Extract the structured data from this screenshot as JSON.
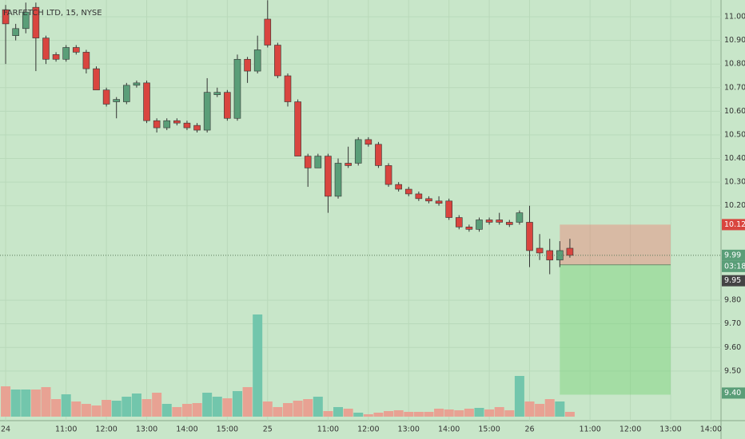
{
  "chart_data": {
    "type": "candlestick",
    "title": "FARFETCH LTD, 15, NYSE",
    "open": [
      11.03,
      10.92,
      10.95,
      11.04,
      10.91,
      10.84,
      10.82,
      10.87,
      10.85,
      10.78,
      10.69,
      10.64,
      10.64,
      10.71,
      10.72,
      10.56,
      10.53,
      10.56,
      10.55,
      10.54,
      10.52,
      10.67,
      10.68,
      10.57,
      10.82,
      10.77,
      10.99,
      10.88,
      10.75,
      10.64,
      10.41,
      10.36,
      10.41,
      10.24,
      10.38,
      10.38,
      10.48,
      10.46,
      10.37,
      10.29,
      10.27,
      10.25,
      10.23,
      10.22,
      10.22,
      10.15,
      10.11,
      10.1,
      10.14,
      10.14,
      10.13,
      10.13,
      10.13,
      10.02,
      10.01,
      9.97,
      10.02
    ],
    "high": [
      11.05,
      10.97,
      11.06,
      11.06,
      10.92,
      10.85,
      10.88,
      10.88,
      10.86,
      10.79,
      10.7,
      10.66,
      10.72,
      10.73,
      10.73,
      10.57,
      10.57,
      10.57,
      10.56,
      10.55,
      10.74,
      10.7,
      10.69,
      10.84,
      10.83,
      10.92,
      11.07,
      10.89,
      10.76,
      10.65,
      10.42,
      10.42,
      10.42,
      10.4,
      10.45,
      10.49,
      10.49,
      10.47,
      10.38,
      10.3,
      10.28,
      10.26,
      10.24,
      10.24,
      10.23,
      10.16,
      10.12,
      10.15,
      10.15,
      10.17,
      10.14,
      10.18,
      10.2,
      10.08,
      10.06,
      10.05,
      10.06
    ],
    "low": [
      10.8,
      10.9,
      10.93,
      10.77,
      10.8,
      10.81,
      10.81,
      10.84,
      10.76,
      10.69,
      10.62,
      10.57,
      10.63,
      10.7,
      10.55,
      10.51,
      10.52,
      10.54,
      10.52,
      10.51,
      10.51,
      10.66,
      10.56,
      10.56,
      10.72,
      10.76,
      10.87,
      10.74,
      10.62,
      10.41,
      10.28,
      10.36,
      10.17,
      10.23,
      10.36,
      10.37,
      10.45,
      10.36,
      10.28,
      10.26,
      10.24,
      10.22,
      10.21,
      10.2,
      10.14,
      10.1,
      10.09,
      10.09,
      10.12,
      10.12,
      10.11,
      10.12,
      9.94,
      9.97,
      9.91,
      9.94,
      9.98
    ],
    "close": [
      10.97,
      10.95,
      11.02,
      10.91,
      10.82,
      10.82,
      10.87,
      10.85,
      10.78,
      10.69,
      10.63,
      10.65,
      10.71,
      10.72,
      10.56,
      10.53,
      10.56,
      10.55,
      10.53,
      10.52,
      10.68,
      10.68,
      10.57,
      10.82,
      10.77,
      10.86,
      10.88,
      10.75,
      10.64,
      10.41,
      10.36,
      10.41,
      10.24,
      10.38,
      10.37,
      10.48,
      10.46,
      10.37,
      10.29,
      10.27,
      10.25,
      10.23,
      10.22,
      10.21,
      10.15,
      10.11,
      10.1,
      10.14,
      10.13,
      10.13,
      10.12,
      10.17,
      10.01,
      10.0,
      9.97,
      10.01,
      9.99
    ],
    "volume": [
      38,
      34,
      34,
      34,
      37,
      22,
      28,
      19,
      16,
      14,
      21,
      20,
      25,
      29,
      22,
      30,
      16,
      12,
      16,
      17,
      30,
      25,
      23,
      32,
      37,
      128,
      19,
      12,
      17,
      20,
      22,
      25,
      7,
      12,
      10,
      5,
      3,
      5,
      7,
      8,
      6,
      6,
      6,
      10,
      9,
      8,
      10,
      11,
      9,
      12,
      8,
      51,
      19,
      16,
      22,
      19,
      6
    ],
    "up_color": "#5a9e78",
    "down_color": "#d9453f",
    "up_volume_color": "#72c6ac",
    "down_volume_color": "#e8a293",
    "xlim": [
      -0.56,
      71
    ],
    "ylim": [
      9.29,
      11.071
    ],
    "vlim": [
      0,
      300
    ],
    "xticks": [
      {
        "value": 0,
        "label": "24"
      },
      {
        "value": 6,
        "label": "11:00"
      },
      {
        "value": 10,
        "label": "12:00"
      },
      {
        "value": 14,
        "label": "13:00"
      },
      {
        "value": 18,
        "label": "14:00"
      },
      {
        "value": 22,
        "label": "15:00"
      },
      {
        "value": 26,
        "label": "25"
      },
      {
        "value": 32,
        "label": "11:00"
      },
      {
        "value": 36,
        "label": "12:00"
      },
      {
        "value": 40,
        "label": "13:00"
      },
      {
        "value": 44,
        "label": "14:00"
      },
      {
        "value": 48,
        "label": "15:00"
      },
      {
        "value": 52,
        "label": "26"
      },
      {
        "value": 58,
        "label": "11:00"
      },
      {
        "value": 62,
        "label": "12:00"
      },
      {
        "value": 66,
        "label": "13:00"
      },
      {
        "value": 70,
        "label": "14:00"
      }
    ],
    "yticks": [
      {
        "value": 11.0,
        "label": "11.00"
      },
      {
        "value": 10.9,
        "label": "10.90"
      },
      {
        "value": 10.8,
        "label": "10.80"
      },
      {
        "value": 10.7,
        "label": "10.70"
      },
      {
        "value": 10.6,
        "label": "10.60"
      },
      {
        "value": 10.5,
        "label": "10.50"
      },
      {
        "value": 10.4,
        "label": "10.40"
      },
      {
        "value": 10.3,
        "label": "10.30"
      },
      {
        "value": 10.2,
        "label": "10.20"
      },
      {
        "value": 9.8,
        "label": "9.80"
      },
      {
        "value": 9.7,
        "label": "9.70"
      },
      {
        "value": 9.6,
        "label": "9.60"
      },
      {
        "value": 9.5,
        "label": "9.50"
      }
    ],
    "position": {
      "from": 55,
      "to": 66,
      "stop": {
        "value": 10.12,
        "label": "10.12"
      },
      "entry": {
        "value": 9.95,
        "label": "9.95"
      },
      "target": {
        "value": 9.4,
        "label": "9.40"
      }
    },
    "last_price": {
      "value": 9.99,
      "label": "9.99"
    },
    "countdown": "03:18",
    "grid": true
  }
}
